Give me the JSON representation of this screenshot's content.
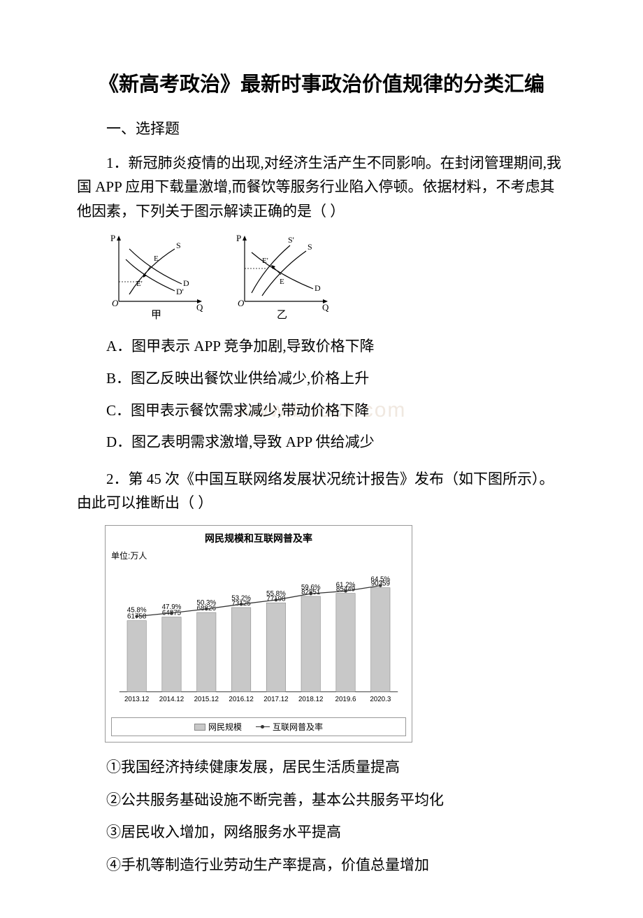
{
  "title": "《新高考政治》最新时事政治价值规律的分类汇编",
  "section_header": "一、选择题",
  "watermark": "www.bdocx.com",
  "q1": {
    "text": "1．新冠肺炎疫情的出现,对经济生活产生不同影响。在封闭管理期间,我国 APP 应用下载量激增,而餐饮等服务行业陷入停顿。依据材料，不考虑其他因素，下列关于图示解读正确的是（ ）",
    "diagram_jia": {
      "label": "甲",
      "axis_color": "#000000",
      "curve_color": "#000000"
    },
    "diagram_yi": {
      "label": "乙",
      "axis_color": "#000000",
      "curve_color": "#000000"
    },
    "options": {
      "A": "A．图甲表示 APP 竞争加剧,导致价格下降",
      "B": "B．图乙反映出餐饮业供给减少,价格上升",
      "C": "C．图甲表示餐饮需求减少,带动价格下降",
      "D": "D．图乙表明需求激增,导致 APP 供给减少"
    }
  },
  "q2": {
    "text": "2．第 45 次《中国互联网络发展状况统计报告》发布（如下图所示）。由此可以推断出（ ）",
    "chart": {
      "title": "网民规模和互联网普及率",
      "unit": "单位:万人",
      "categories": [
        "2013.12",
        "2014.12",
        "2015.12",
        "2016.12",
        "2017.12",
        "2018.12",
        "2019.6",
        "2020.3"
      ],
      "bar_values": [
        61758,
        64875,
        68826,
        73125,
        77198,
        82851,
        85449,
        90359
      ],
      "line_values": [
        45.8,
        47.9,
        50.3,
        53.2,
        55.8,
        59.6,
        61.2,
        64.5
      ],
      "line_labels": [
        "45.8%",
        "47.9%",
        "50.3%",
        "53.2%",
        "55.8%",
        "59.6%",
        "61.2%",
        "64.5%"
      ],
      "bar_color": "#c8c8c8",
      "bar_border": "#888888",
      "line_color": "#333333",
      "text_color": "#000000",
      "axis_color": "#444444",
      "bar_max": 100000,
      "line_max": 70,
      "legend_bar": "网民规模",
      "legend_line": "互联网普及率",
      "font_size_label": 10,
      "font_size_axis": 10
    },
    "sub_options": {
      "1": "①我国经济持续健康发展，居民生活质量提高",
      "2": "②公共服务基础设施不断完善，基本公共服务平均化",
      "3": "③居民收入增加，网络服务水平提高",
      "4": "④手机等制造行业劳动生产率提高，价值总量增加"
    }
  }
}
